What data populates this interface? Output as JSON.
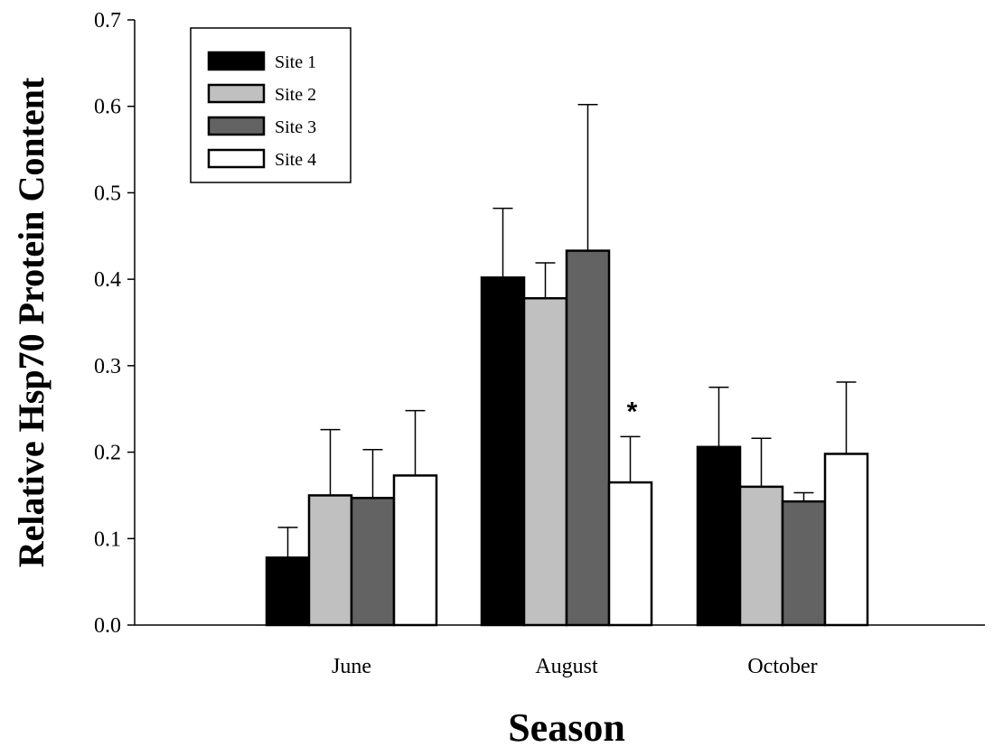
{
  "chart_data": {
    "type": "bar",
    "xlabel": "Season",
    "ylabel": "Relative Hsp70 Protein Content",
    "ylim": [
      0,
      0.7
    ],
    "yticks": [
      "0.0",
      "0.1",
      "0.2",
      "0.3",
      "0.4",
      "0.5",
      "0.6",
      "0.7"
    ],
    "categories": [
      "June",
      "August",
      "October"
    ],
    "legend_position": "top-left",
    "grid": false,
    "series": [
      {
        "name": "Site 1",
        "color": "#000000",
        "values": [
          0.078,
          0.402,
          0.206
        ],
        "errors": [
          0.035,
          0.08,
          0.069
        ]
      },
      {
        "name": "Site 2",
        "color": "#c0c0c0",
        "values": [
          0.15,
          0.378,
          0.16
        ],
        "errors": [
          0.076,
          0.041,
          0.056
        ]
      },
      {
        "name": "Site 3",
        "color": "#636363",
        "values": [
          0.147,
          0.433,
          0.143
        ],
        "errors": [
          0.056,
          0.169,
          0.01
        ]
      },
      {
        "name": "Site 4",
        "color": "#ffffff",
        "values": [
          0.173,
          0.165,
          0.198
        ],
        "errors": [
          0.075,
          0.053,
          0.083
        ]
      }
    ],
    "annotations": [
      {
        "text": "*",
        "category": "August",
        "series": "Site 4"
      }
    ]
  }
}
